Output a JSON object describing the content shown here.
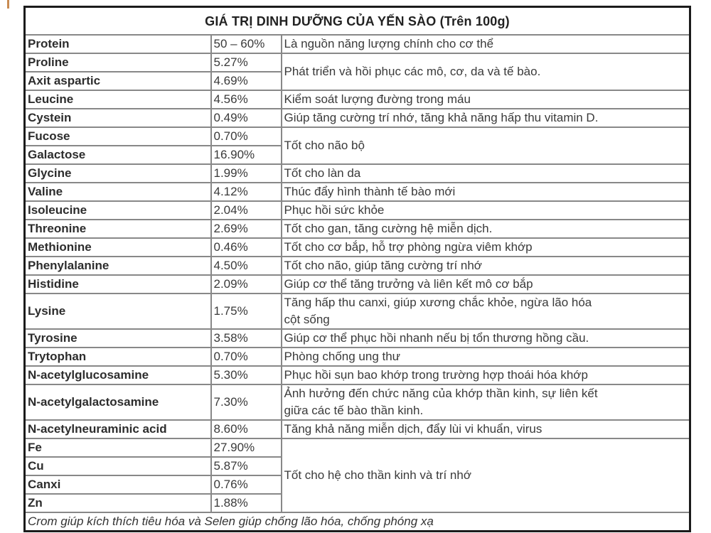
{
  "table": {
    "title": "GIÁ TRỊ DINH DƯỠNG CỦA YẾN SÀO (Trên 100g)",
    "footer": "Crom giúp kích thích tiêu hóa và Selen giúp chống lão hóa, chống phóng xạ",
    "rows": [
      {
        "name": "Protein",
        "value": "50 – 60%",
        "desc": "Là nguồn năng lượng chính cho cơ thể",
        "desc_rowspan": 1
      },
      {
        "name": "Proline",
        "value": "5.27%",
        "desc": "Phát triển và hồi phục các mô, cơ, da và tế bào.",
        "desc_rowspan": 2
      },
      {
        "name": "Axit aspartic",
        "value": "4.69%"
      },
      {
        "name": "Leucine",
        "value": "4.56%",
        "desc": "Kiểm soát lượng đường trong máu",
        "desc_rowspan": 1
      },
      {
        "name": "Cystein",
        "value": "0.49%",
        "desc": "Giúp tăng cường trí nhớ, tăng khả năng hấp thu vitamin D.",
        "desc_rowspan": 1
      },
      {
        "name": "Fucose",
        "value": "0.70%",
        "desc": "Tốt cho não bộ",
        "desc_rowspan": 2
      },
      {
        "name": "Galactose",
        "value": "16.90%"
      },
      {
        "name": "Glycine",
        "value": "1.99%",
        "desc": "Tốt cho làn da",
        "desc_rowspan": 1
      },
      {
        "name": "Valine",
        "value": "4.12%",
        "desc": "Thúc đẩy hình thành tế bào mới",
        "desc_rowspan": 1
      },
      {
        "name": "Isoleucine",
        "value": "2.04%",
        "desc": "Phục hồi sức khỏe",
        "desc_rowspan": 1
      },
      {
        "name": "Threonine",
        "value": "2.69%",
        "desc": "Tốt cho gan, tăng cường hệ miễn dịch.",
        "desc_rowspan": 1
      },
      {
        "name": "Methionine",
        "value": "0.46%",
        "desc": "Tốt cho cơ bắp, hỗ trợ phòng ngừa viêm khớp",
        "desc_rowspan": 1
      },
      {
        "name": "Phenylalanine",
        "value": "4.50%",
        "desc": "Tốt cho não, giúp tăng cường trí nhớ",
        "desc_rowspan": 1
      },
      {
        "name": "Histidine",
        "value": "2.09%",
        "desc": "Giúp cơ thể tăng trưởng và liên kết mô cơ bắp",
        "desc_rowspan": 1
      },
      {
        "name": "Lysine",
        "value": "1.75%",
        "desc": "Tăng hấp thu canxi, giúp xương chắc khỏe, ngừa lão hóa\ncột sống",
        "desc_rowspan": 1
      },
      {
        "name": "Tyrosine",
        "value": "3.58%",
        "desc": "Giúp cơ thể phục hồi nhanh nếu bị tổn thương hồng cầu.",
        "desc_rowspan": 1
      },
      {
        "name": "Trytophan",
        "value": "0.70%",
        "desc": "Phòng chống ung thư",
        "desc_rowspan": 1
      },
      {
        "name": "N-acetylglucosamine",
        "value": "5.30%",
        "desc": "Phục hồi sụn bao khớp trong trường hợp thoái hóa khớp",
        "desc_rowspan": 1
      },
      {
        "name": "N-acetylgalactosamine",
        "value": "7.30%",
        "desc": "Ảnh hưởng đến chức năng của khớp thần kinh, sự liên kết\ngiữa các tế bào thần kinh.",
        "desc_rowspan": 1
      },
      {
        "name": "N-acetylneuraminic acid",
        "value": "8.60%",
        "desc": "Tăng khả năng miễn dịch, đẩy lùi vi khuẩn, virus",
        "desc_rowspan": 1
      },
      {
        "name": "Fe",
        "value": "27.90%",
        "desc": "Tốt cho hệ cho thần kinh và trí nhớ",
        "desc_rowspan": 4
      },
      {
        "name": "Cu",
        "value": "5.87%"
      },
      {
        "name": "Canxi",
        "value": "0.76%"
      },
      {
        "name": "Zn",
        "value": "1.88%"
      }
    ],
    "colors": {
      "outer_border": "#1b1b1b",
      "inner_border": "#888888",
      "text": "#3a3a3a",
      "background": "#ffffff",
      "corner_mark": "#c98b52"
    }
  }
}
